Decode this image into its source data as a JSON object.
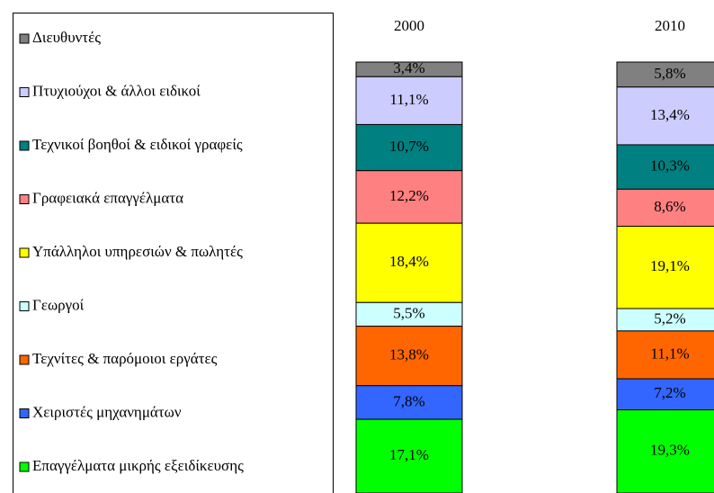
{
  "chart_data": {
    "type": "stacked_bar",
    "categories": [
      "2000",
      "2010"
    ],
    "series": [
      {
        "name": "Διευθυντές",
        "color": "#808080",
        "values": [
          3.4,
          5.8
        ],
        "value_labels": [
          "3,4%",
          "5,8%"
        ]
      },
      {
        "name": "Πτυχιούχοι & άλλοι ειδικοί",
        "color": "#ccccff",
        "values": [
          11.1,
          13.4
        ],
        "value_labels": [
          "11,1%",
          "13,4%"
        ]
      },
      {
        "name": "Τεχνικοί βοηθοί & ειδικοί γραφείς",
        "color": "#008080",
        "values": [
          10.7,
          10.3
        ],
        "value_labels": [
          "10,7%",
          "10,3%"
        ]
      },
      {
        "name": "Γραφειακά επαγγέλματα",
        "color": "#ff8080",
        "values": [
          12.2,
          8.6
        ],
        "value_labels": [
          "12,2%",
          "8,6%"
        ]
      },
      {
        "name": "Υπάλληλοι υπηρεσιών & πωλητές",
        "color": "#ffff00",
        "values": [
          18.4,
          19.1
        ],
        "value_labels": [
          "18,4%",
          "19,1%"
        ]
      },
      {
        "name": "Γεωργοί",
        "color": "#ccffff",
        "values": [
          5.5,
          5.2
        ],
        "value_labels": [
          "5,5%",
          "5,2%"
        ]
      },
      {
        "name": "Τεχνίτες & παρόμοιοι εργάτες",
        "color": "#ff6600",
        "values": [
          13.8,
          11.1
        ],
        "value_labels": [
          "13,8%",
          "11,1%"
        ]
      },
      {
        "name": "Χειριστές μηχανημάτων",
        "color": "#3366ff",
        "values": [
          7.8,
          7.2
        ],
        "value_labels": [
          "7,8%",
          "7,2%"
        ]
      },
      {
        "name": "Επαγγέλματα μικρής εξειδίκευσης",
        "color": "#00ff00",
        "values": [
          17.1,
          19.3
        ],
        "value_labels": [
          "17,1%",
          "19,3%"
        ]
      }
    ]
  }
}
